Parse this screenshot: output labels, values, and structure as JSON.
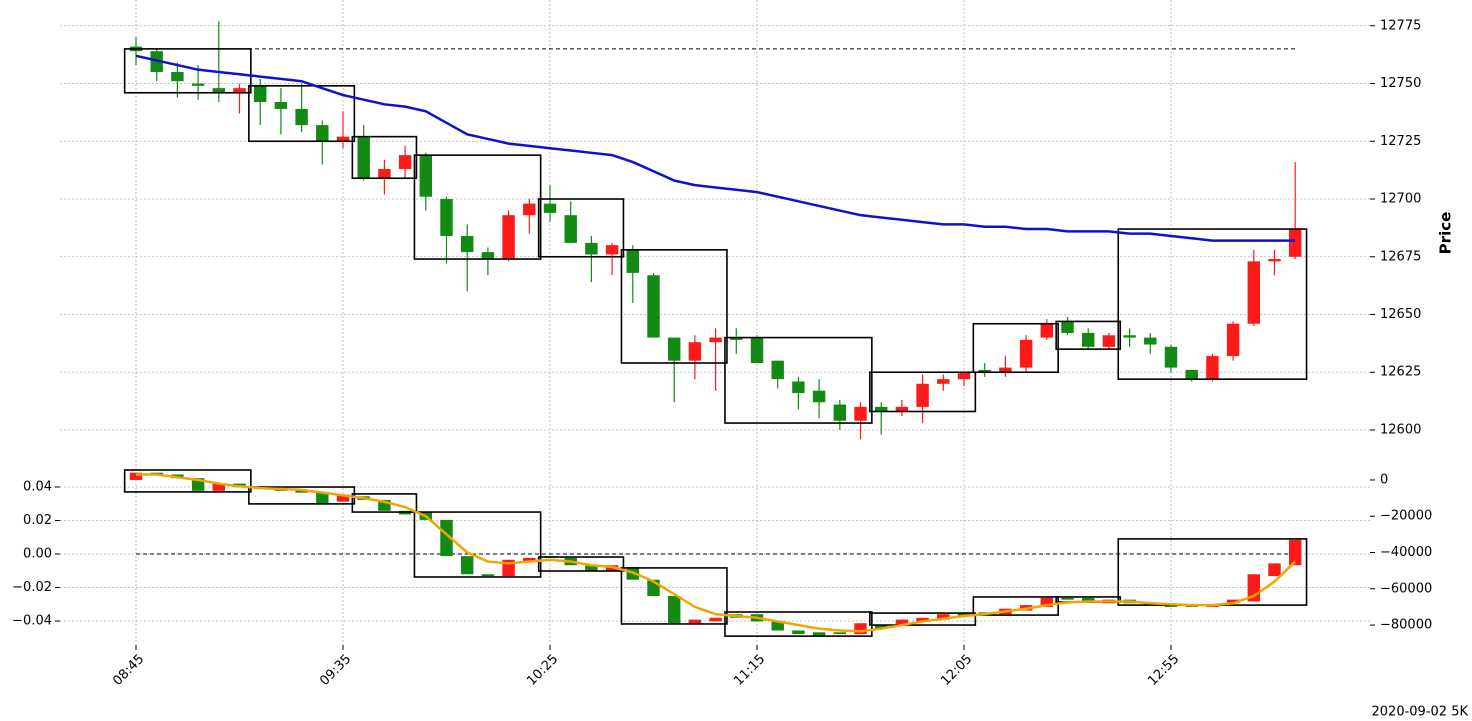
{
  "chart_data": [
    {
      "type": "candlestick",
      "ylabel": "Price",
      "categories": [
        "08:45",
        null,
        null,
        null,
        null,
        null,
        null,
        null,
        null,
        null,
        "09:35",
        null,
        null,
        null,
        null,
        null,
        null,
        null,
        null,
        null,
        "10:25",
        null,
        null,
        null,
        null,
        null,
        null,
        null,
        null,
        null,
        "11:15",
        null,
        null,
        null,
        null,
        null,
        null,
        null,
        null,
        null,
        "12:05",
        null,
        null,
        null,
        null,
        null,
        null,
        null,
        null,
        null,
        "12:55",
        null,
        null,
        null,
        null,
        null,
        null
      ],
      "open": [
        12766,
        12764,
        12755,
        12750,
        12748,
        12746,
        12749,
        12742,
        12739,
        12732,
        12725,
        12727,
        12709,
        12713,
        12719,
        12700,
        12684,
        12677,
        12674,
        12693,
        12698,
        12693,
        12681,
        12676,
        12678,
        12667,
        12640,
        12630,
        12638,
        12640,
        12640,
        12630,
        12621,
        12617,
        12611,
        12604,
        12610,
        12608,
        12610,
        12620,
        12622,
        12626,
        12625,
        12627,
        12640,
        12647,
        12642,
        12636,
        12641,
        12640,
        12636,
        12626,
        12622,
        12632,
        12646,
        12673,
        12675
      ],
      "high": [
        12770,
        12765,
        12759,
        12758,
        12777,
        12750,
        12752,
        12748,
        12750,
        12734,
        12738,
        12732,
        12717,
        12723,
        12720,
        12701,
        12689,
        12679,
        12695,
        12700,
        12706,
        12699,
        12684,
        12681,
        12680,
        12668,
        12640,
        12641,
        12644,
        12644,
        12641,
        12630,
        12623,
        12622,
        12613,
        12612,
        12612,
        12613,
        12624,
        12624,
        12625,
        12629,
        12632,
        12641,
        12648,
        12649,
        12644,
        12642,
        12644,
        12642,
        12637,
        12626,
        12633,
        12647,
        12678,
        12678,
        12716
      ],
      "low": [
        12758,
        12751,
        12744,
        12743,
        12742,
        12737,
        12732,
        12728,
        12729,
        12715,
        12722,
        12708,
        12702,
        12709,
        12695,
        12672,
        12660,
        12667,
        12673,
        12685,
        12690,
        12681,
        12664,
        12667,
        12655,
        12640,
        12612,
        12622,
        12617,
        12633,
        12629,
        12618,
        12609,
        12605,
        12600,
        12596,
        12598,
        12606,
        12603,
        12617,
        12619,
        12623,
        12623,
        12625,
        12639,
        12641,
        12635,
        12635,
        12636,
        12633,
        12625,
        12621,
        12621,
        12630,
        12645,
        12667,
        12674
      ],
      "close": [
        12764,
        12755,
        12751,
        12749,
        12746,
        12748,
        12742,
        12739,
        12732,
        12725,
        12727,
        12709,
        12713,
        12719,
        12701,
        12684,
        12677,
        12674,
        12693,
        12698,
        12694,
        12681,
        12676,
        12680,
        12668,
        12640,
        12630,
        12638,
        12640,
        12639,
        12629,
        12622,
        12616,
        12612,
        12604,
        12610,
        12608,
        12610,
        12620,
        12622,
        12625,
        12625,
        12627,
        12639,
        12646,
        12642,
        12636,
        12641,
        12640,
        12637,
        12627,
        12622,
        12632,
        12646,
        12673,
        12674,
        12687
      ],
      "up_color": "#ff1a1a",
      "down_color": "#138a13",
      "ma": {
        "color": "#1010d0",
        "values": [
          12762,
          12760,
          12758,
          12756,
          12755,
          12754,
          12753,
          12752,
          12751,
          12748,
          12745,
          12743,
          12741,
          12740,
          12738,
          12733,
          12728,
          12726,
          12724,
          12723,
          12722,
          12721,
          12720,
          12719,
          12716,
          12712,
          12708,
          12706,
          12705,
          12704,
          12703,
          12701,
          12699,
          12697,
          12695,
          12693,
          12692,
          12691,
          12690,
          12689,
          12689,
          12688,
          12688,
          12687,
          12687,
          12686,
          12686,
          12686,
          12685,
          12685,
          12684,
          12683,
          12682,
          12682,
          12682,
          12682,
          12682
        ]
      },
      "boxes": [
        {
          "start": 0,
          "end": 5,
          "top": 12765,
          "bottom": 12746
        },
        {
          "start": 6,
          "end": 10,
          "top": 12749,
          "bottom": 12725
        },
        {
          "start": 11,
          "end": 13,
          "top": 12727,
          "bottom": 12709
        },
        {
          "start": 14,
          "end": 19,
          "top": 12719,
          "bottom": 12674
        },
        {
          "start": 20,
          "end": 23,
          "top": 12700,
          "bottom": 12675
        },
        {
          "start": 24,
          "end": 28,
          "top": 12678,
          "bottom": 12629
        },
        {
          "start": 29,
          "end": 35,
          "top": 12640,
          "bottom": 12603
        },
        {
          "start": 36,
          "end": 40,
          "top": 12625,
          "bottom": 12608
        },
        {
          "start": 41,
          "end": 44,
          "top": 12646,
          "bottom": 12625
        },
        {
          "start": 45,
          "end": 47,
          "top": 12647,
          "bottom": 12635
        },
        {
          "start": 48,
          "end": 56,
          "top": 12687,
          "bottom": 12622
        }
      ],
      "hline": 12765,
      "ylim": [
        12587,
        12784
      ],
      "yticks": [
        12600,
        12625,
        12650,
        12675,
        12700,
        12725,
        12750,
        12775
      ],
      "grid": true
    },
    {
      "type": "candlestick",
      "axis": "y2",
      "open": [
        0,
        4000,
        3000,
        1000,
        -6000,
        -2000,
        -4000,
        -5000,
        -6000,
        -7000,
        -12000,
        -9000,
        -11000,
        -17000,
        -18000,
        -22000,
        -42000,
        -52000,
        -53000,
        -45000,
        -42000,
        -43000,
        -47000,
        -50000,
        -48000,
        -55000,
        -64000,
        -79000,
        -78000,
        -74000,
        -74000,
        -78000,
        -83000,
        -84000,
        -84000,
        -85000,
        -80000,
        -80000,
        -78000,
        -77000,
        -73000,
        -73000,
        -74000,
        -72000,
        -70000,
        -65000,
        -65000,
        -68000,
        -66000,
        -68000,
        -69000,
        -69000,
        -70000,
        -68000,
        -67000,
        -53000,
        -47000
      ],
      "close": [
        4000,
        3000,
        1000,
        -6000,
        -2000,
        -4000,
        -5000,
        -6000,
        -7000,
        -13000,
        -8000,
        -11000,
        -17000,
        -19000,
        -22000,
        -42000,
        -52000,
        -53000,
        -44000,
        -43000,
        -43000,
        -47000,
        -50000,
        -47000,
        -55000,
        -64000,
        -79000,
        -77000,
        -76000,
        -76000,
        -78000,
        -83000,
        -85000,
        -86000,
        -85000,
        -79000,
        -82000,
        -77000,
        -76000,
        -74000,
        -75000,
        -74000,
        -71000,
        -69000,
        -65000,
        -66000,
        -67000,
        -66000,
        -68000,
        -69000,
        -70000,
        -70000,
        -69000,
        -66000,
        -52000,
        -46000,
        -33000
      ],
      "up_color": "#ff1a1a",
      "down_color": "#138a13",
      "line": {
        "color": "#f0a500",
        "axis": "y2",
        "values": [
          3000,
          3000,
          1500,
          0,
          -2000,
          -3500,
          -4500,
          -5000,
          -5500,
          -7000,
          -8500,
          -10000,
          -12000,
          -15000,
          -20000,
          -30000,
          -40000,
          -45000,
          -46000,
          -45000,
          -44000,
          -45000,
          -47000,
          -48000,
          -51000,
          -56000,
          -63000,
          -70000,
          -74000,
          -75000,
          -76000,
          -78000,
          -80000,
          -82000,
          -83000,
          -83500,
          -82000,
          -80000,
          -78000,
          -76500,
          -75000,
          -74000,
          -72500,
          -71000,
          -69000,
          -67500,
          -67000,
          -67000,
          -67000,
          -68000,
          -68500,
          -69000,
          -69000,
          -68000,
          -64000,
          -56000,
          -45000
        ]
      },
      "boxes": [
        {
          "start": 0,
          "end": 5,
          "top": 5500,
          "bottom": -6600
        },
        {
          "start": 6,
          "end": 10,
          "top": -3900,
          "bottom": -13200
        },
        {
          "start": 11,
          "end": 13,
          "top": -7700,
          "bottom": -17700
        },
        {
          "start": 14,
          "end": 19,
          "top": -17700,
          "bottom": -53500
        },
        {
          "start": 20,
          "end": 23,
          "top": -42500,
          "bottom": -50200
        },
        {
          "start": 24,
          "end": 28,
          "top": -48500,
          "bottom": -79400
        },
        {
          "start": 29,
          "end": 35,
          "top": -72800,
          "bottom": -86100
        },
        {
          "start": 36,
          "end": 40,
          "top": -73400,
          "bottom": -80000
        },
        {
          "start": 41,
          "end": 44,
          "top": -64500,
          "bottom": -74500
        },
        {
          "start": 45,
          "end": 47,
          "top": -64500,
          "bottom": -67300
        },
        {
          "start": 48,
          "end": 56,
          "top": -32500,
          "bottom": -69000
        }
      ],
      "hline": 0,
      "ylim": [
        -0.0543,
        0.0549
      ],
      "yticks": [
        {
          "value": -0.04,
          "label": "−0.04"
        },
        {
          "value": -0.02,
          "label": "−0.02"
        },
        {
          "value": 0,
          "label": "0.00"
        },
        0.02,
        0.04
      ],
      "y2lim": [
        -91000,
        9900
      ],
      "y2ticks": [
        {
          "value": -80000,
          "label": "−80000"
        },
        {
          "value": -60000,
          "label": "−60000"
        },
        {
          "value": -40000,
          "label": "−40000"
        },
        {
          "value": -20000,
          "label": "−20000"
        },
        0
      ],
      "grid": true
    }
  ],
  "footer": "2020-09-02 5K"
}
